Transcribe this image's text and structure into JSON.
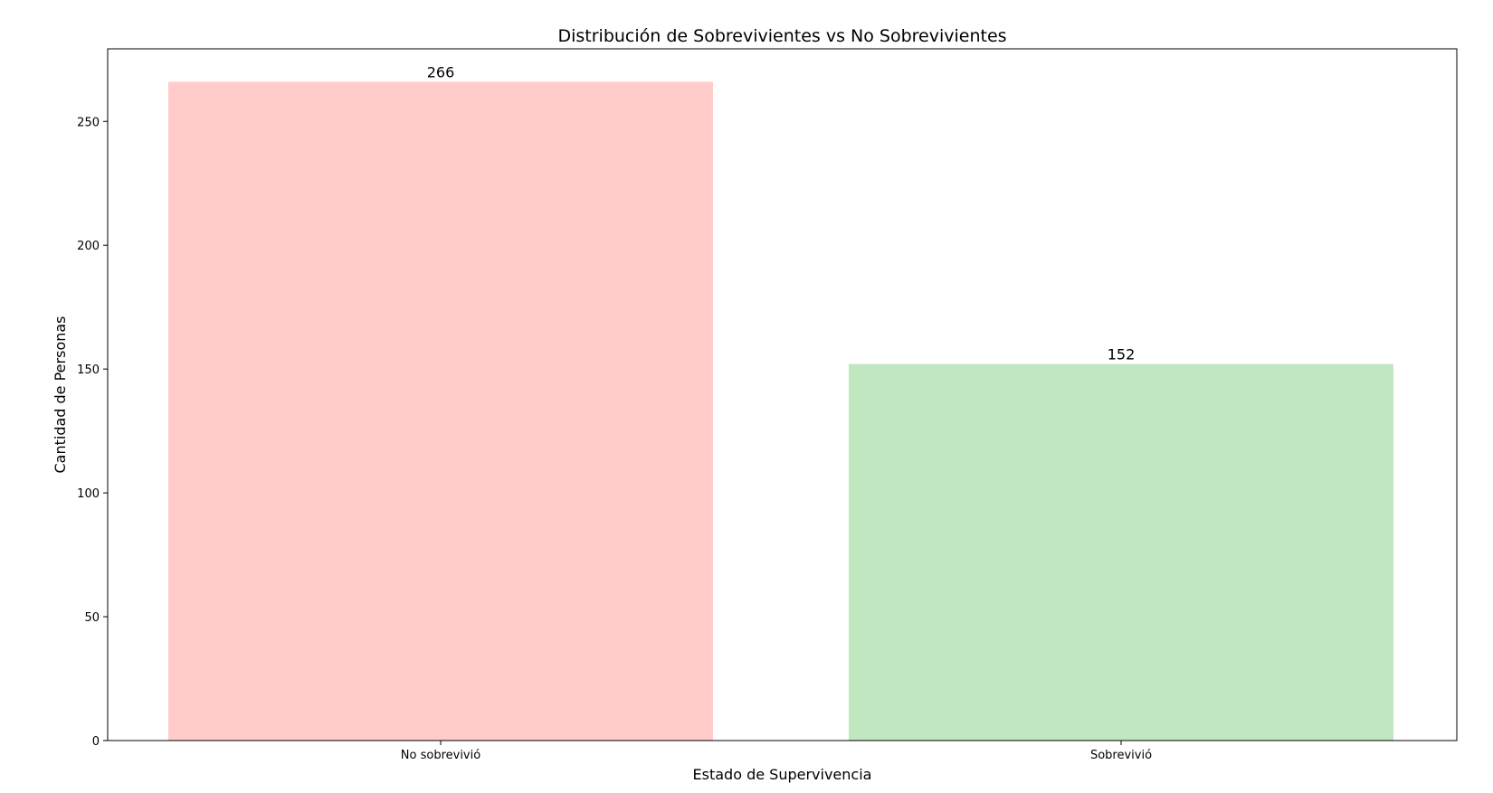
{
  "chart_data": {
    "type": "bar",
    "title": "Distribución de Sobrevivientes vs No Sobrevivientes",
    "xlabel": "Estado de Supervivencia",
    "ylabel": "Cantidad de Personas",
    "categories": [
      "No sobrevivió",
      "Sobrevivió"
    ],
    "values": [
      266,
      152
    ],
    "data_labels": [
      "266",
      "152"
    ],
    "colors": [
      "#ffcccb",
      "#c1e7c1"
    ],
    "ylim": [
      0,
      279.3
    ],
    "yticks": [
      0,
      50,
      100,
      150,
      200,
      250
    ],
    "grid": false,
    "legend": "none"
  }
}
